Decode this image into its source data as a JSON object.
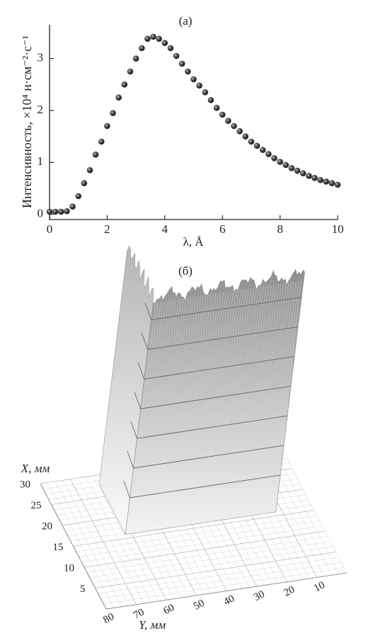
{
  "chart_data": [
    {
      "type": "scatter",
      "title": "(a)",
      "x_label": "λ, Å",
      "y_label": "Интенсивность, ×10⁴ н·см⁻²·с⁻¹",
      "x": [
        0,
        0.2,
        0.4,
        0.6,
        0.8,
        1.0,
        1.2,
        1.4,
        1.6,
        1.8,
        2.0,
        2.2,
        2.4,
        2.6,
        2.8,
        3.0,
        3.2,
        3.4,
        3.6,
        3.8,
        4.0,
        4.2,
        4.4,
        4.6,
        4.8,
        5.0,
        5.2,
        5.4,
        5.6,
        5.8,
        6.0,
        6.2,
        6.4,
        6.6,
        6.8,
        7.0,
        7.2,
        7.4,
        7.6,
        7.8,
        8.0,
        8.2,
        8.4,
        8.6,
        8.8,
        9.0,
        9.2,
        9.4,
        9.6,
        9.8,
        10.0
      ],
      "values": [
        0.05,
        0.05,
        0.05,
        0.06,
        0.15,
        0.35,
        0.6,
        0.85,
        1.15,
        1.4,
        1.7,
        1.95,
        2.25,
        2.5,
        2.75,
        3.0,
        3.2,
        3.38,
        3.42,
        3.38,
        3.3,
        3.2,
        3.05,
        2.9,
        2.75,
        2.6,
        2.48,
        2.35,
        2.2,
        2.05,
        1.92,
        1.8,
        1.7,
        1.6,
        1.5,
        1.4,
        1.32,
        1.24,
        1.16,
        1.08,
        1.01,
        0.95,
        0.89,
        0.84,
        0.79,
        0.74,
        0.7,
        0.66,
        0.63,
        0.6,
        0.57
      ],
      "color": "#3a3a3a",
      "xlim": [
        0,
        10
      ],
      "xticks": [
        0,
        2,
        4,
        6,
        8,
        10
      ],
      "ylim": [
        -0.1,
        3.65
      ],
      "yticks": [
        0,
        1,
        2,
        3
      ]
    },
    {
      "type": "surface",
      "title": "(б)",
      "x_label": "X, мм",
      "y_label": "Y, мм",
      "xlim": [
        0,
        30
      ],
      "xticks": [
        5,
        10,
        15,
        20,
        25,
        30
      ],
      "ylim": [
        0,
        80
      ],
      "yticks": [
        10,
        20,
        30,
        40,
        50,
        60,
        70,
        80
      ],
      "color": "#9a9a9a"
    }
  ]
}
